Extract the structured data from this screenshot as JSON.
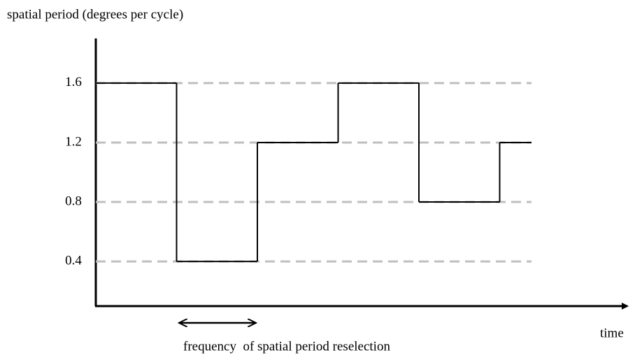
{
  "chart_data": {
    "type": "step",
    "y_label": "spatial period (degrees per cycle)",
    "x_label": "time",
    "annotation": "frequency  of spatial period reselection",
    "series": [
      {
        "color": "#000000",
        "values": [
          1.6,
          0.4,
          1.2,
          1.6,
          0.8,
          1.2
        ]
      }
    ],
    "ylim": [
      0.1,
      1.9
    ],
    "yticks": [
      0.4,
      0.8,
      1.2,
      1.6
    ],
    "grid": true
  }
}
